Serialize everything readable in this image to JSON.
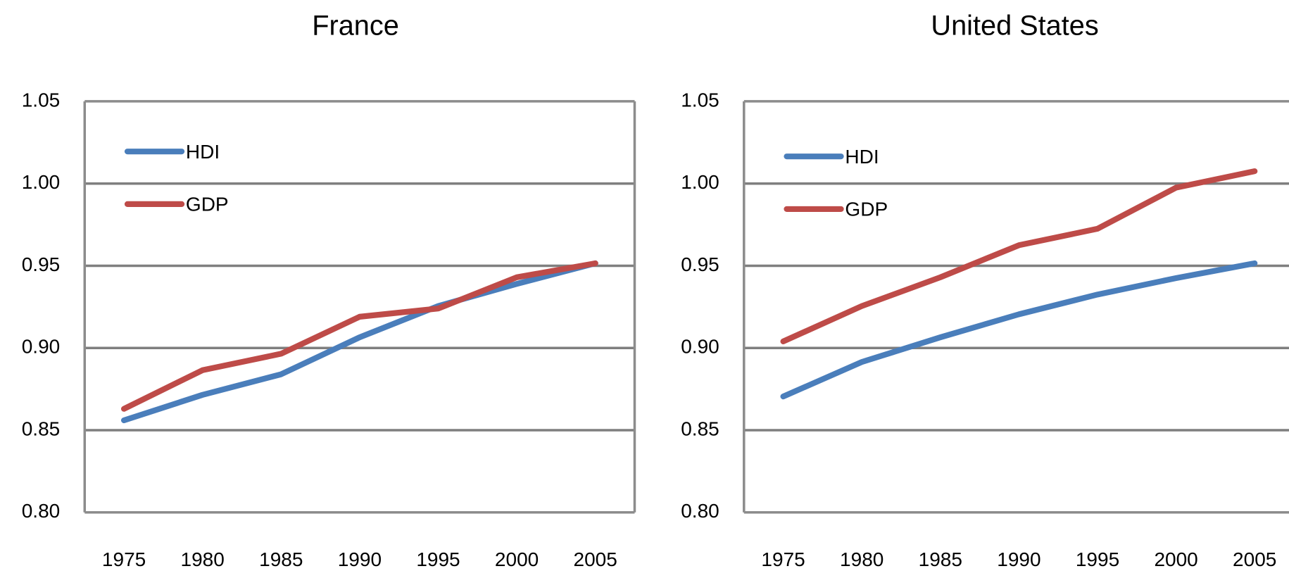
{
  "chart_data": [
    {
      "type": "line",
      "title": "France",
      "x": [
        "1975",
        "1980",
        "1985",
        "1990",
        "1995",
        "2000",
        "2005"
      ],
      "series": [
        {
          "name": "HDI",
          "color": "#4a7ebb",
          "values": [
            0.856,
            0.8715,
            0.884,
            0.9065,
            0.9255,
            0.939,
            0.9515
          ]
        },
        {
          "name": "GDP",
          "color": "#be4b48",
          "values": [
            0.863,
            0.8865,
            0.8965,
            0.919,
            0.924,
            0.943,
            0.9515
          ]
        }
      ],
      "ylim": [
        0.8,
        1.05
      ],
      "yticks": [
        {
          "value": 0.8,
          "label": "0.80"
        },
        0.85,
        {
          "value": 0.9,
          "label": "0.90"
        },
        0.95,
        {
          "value": 1.0,
          "label": "1.00"
        },
        1.05
      ],
      "grid": true,
      "legend": "upper left"
    },
    {
      "type": "line",
      "title": "United States",
      "x": [
        "1975",
        "1980",
        "1985",
        "1990",
        "1995",
        "2000",
        "2005"
      ],
      "series": [
        {
          "name": "HDI",
          "color": "#4a7ebb",
          "values": [
            0.8705,
            0.8915,
            0.9065,
            0.9205,
            0.9325,
            0.9425,
            0.9515
          ]
        },
        {
          "name": "GDP",
          "color": "#be4b48",
          "values": [
            0.904,
            0.9255,
            0.943,
            0.9625,
            0.9725,
            0.9975,
            1.0075
          ]
        }
      ],
      "ylim": [
        0.8,
        1.05
      ],
      "yticks": [
        {
          "value": 0.8,
          "label": "0.80"
        },
        0.85,
        {
          "value": 0.9,
          "label": "0.90"
        },
        0.95,
        {
          "value": 1.0,
          "label": "1.00"
        },
        1.05
      ],
      "grid": true,
      "legend": "upper left"
    }
  ]
}
